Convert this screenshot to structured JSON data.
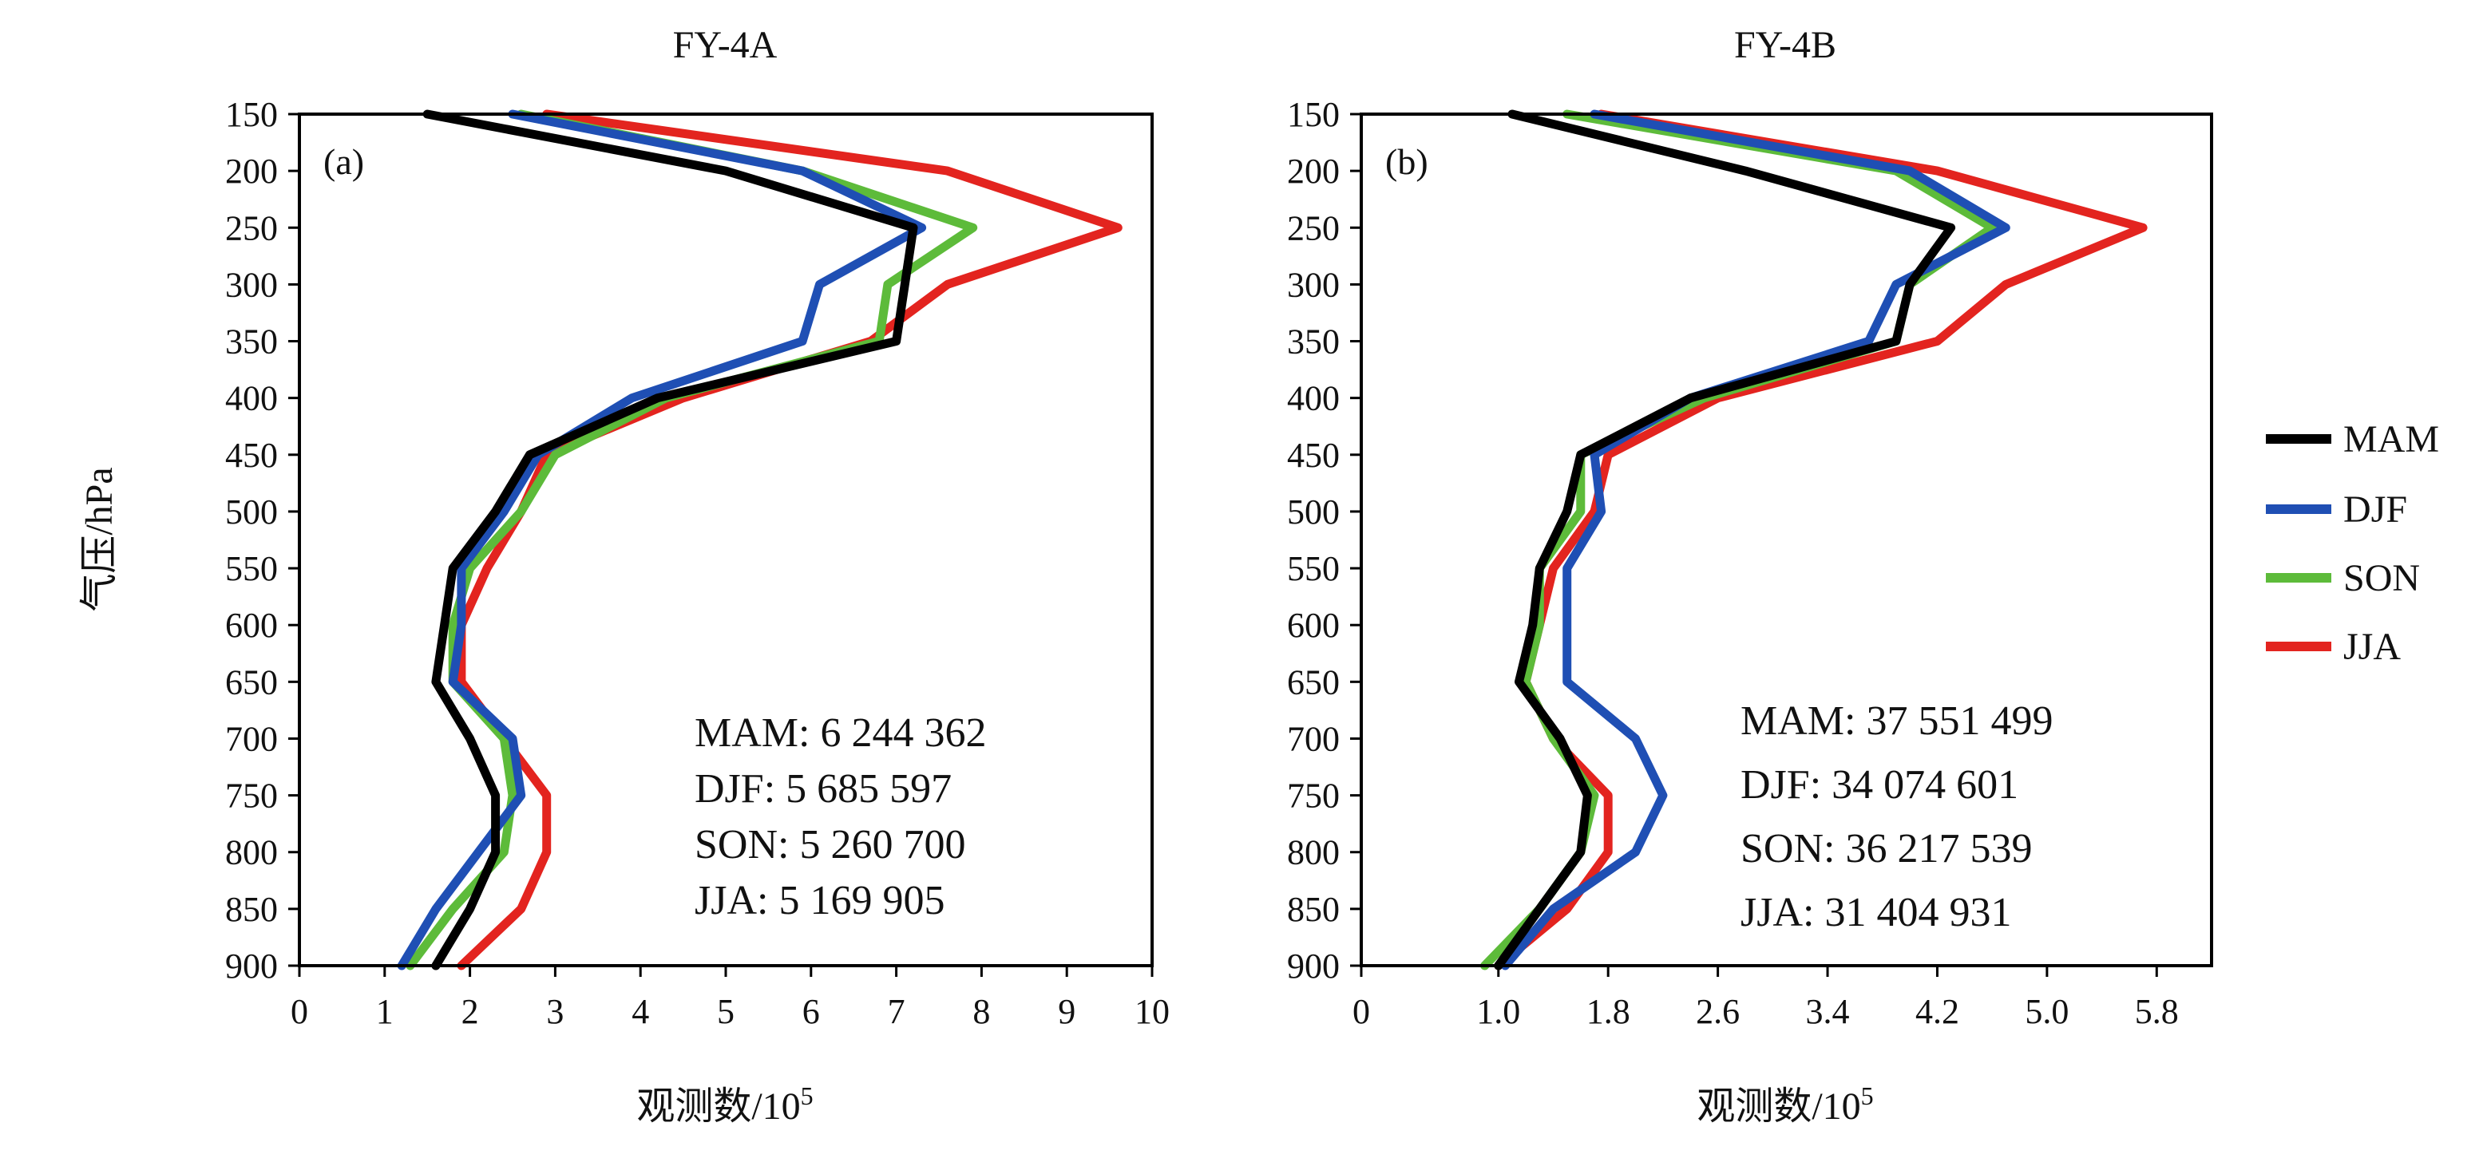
{
  "colors": {
    "MAM": "#000000",
    "DJF": "#1f4fb4",
    "SON": "#5dbb3a",
    "JJA": "#e3241f"
  },
  "legend": [
    {
      "name": "MAM",
      "color": "#000000"
    },
    {
      "name": "DJF",
      "color": "#1f4fb4"
    },
    {
      "name": "SON",
      "color": "#5dbb3a"
    },
    {
      "name": "JJA",
      "color": "#e3241f"
    }
  ],
  "chart_data": [
    {
      "type": "line",
      "title": "FY-4A",
      "panel_tag": "(a)",
      "xlabel": "观测数/10",
      "xlabel_sup": "5",
      "ylabel": "气压/hPa",
      "xlim": [
        0,
        10
      ],
      "xticks": [
        0,
        1,
        2,
        3,
        4,
        5,
        6,
        7,
        8,
        9,
        10
      ],
      "xtick_labels": [
        "0",
        "1",
        "2",
        "3",
        "4",
        "5",
        "6",
        "7",
        "8",
        "9",
        "10"
      ],
      "ylim": [
        150,
        900
      ],
      "y_inverted": true,
      "yticks": [
        150,
        200,
        250,
        300,
        350,
        400,
        450,
        500,
        550,
        600,
        650,
        700,
        750,
        800,
        850,
        900
      ],
      "ytick_labels": [
        "150",
        "200",
        "250",
        "300",
        "350",
        "400",
        "450",
        "500",
        "550",
        "600",
        "650",
        "700",
        "750",
        "800",
        "850",
        "900"
      ],
      "y": [
        150,
        200,
        250,
        300,
        350,
        400,
        450,
        500,
        550,
        600,
        650,
        700,
        750,
        800,
        850,
        900
      ],
      "series": [
        {
          "name": "JJA",
          "values": [
            2.9,
            7.6,
            9.6,
            7.6,
            6.7,
            4.5,
            2.9,
            2.6,
            2.2,
            1.9,
            1.9,
            2.4,
            2.9,
            2.9,
            2.6,
            1.9
          ]
        },
        {
          "name": "SON",
          "values": [
            2.6,
            5.9,
            7.9,
            6.9,
            6.8,
            4.3,
            3.0,
            2.6,
            2.0,
            1.8,
            1.8,
            2.4,
            2.5,
            2.4,
            1.8,
            1.3
          ]
        },
        {
          "name": "DJF",
          "values": [
            2.5,
            5.9,
            7.3,
            6.1,
            5.9,
            3.9,
            2.8,
            2.4,
            1.9,
            1.9,
            1.8,
            2.5,
            2.6,
            2.1,
            1.6,
            1.2
          ]
        },
        {
          "name": "MAM",
          "values": [
            1.5,
            5.0,
            7.2,
            7.1,
            7.0,
            4.2,
            2.7,
            2.3,
            1.8,
            1.7,
            1.6,
            2.0,
            2.3,
            2.3,
            2.0,
            1.6
          ]
        }
      ],
      "totals": [
        {
          "text": "MAM: 6 244 362"
        },
        {
          "text": "DJF: 5 685 597"
        },
        {
          "text": "SON: 5 260 700"
        },
        {
          "text": "JJA: 5 169 905"
        }
      ]
    },
    {
      "type": "line",
      "title": "FY-4B",
      "panel_tag": "(b)",
      "xlabel": "观测数/10",
      "xlabel_sup": "5",
      "ylabel": "",
      "xlim": [
        0,
        6.2
      ],
      "xticks": [
        0,
        1.0,
        1.8,
        2.6,
        3.4,
        4.2,
        5.0,
        5.8
      ],
      "xtick_labels": [
        "0",
        "1.0",
        "1.8",
        "2.6",
        "3.4",
        "4.2",
        "5.0",
        "5.8"
      ],
      "ylim": [
        150,
        900
      ],
      "y_inverted": true,
      "yticks": [
        150,
        200,
        250,
        300,
        350,
        400,
        450,
        500,
        550,
        600,
        650,
        700,
        750,
        800,
        850,
        900
      ],
      "ytick_labels": [
        "150",
        "200",
        "250",
        "300",
        "350",
        "400",
        "450",
        "500",
        "550",
        "600",
        "650",
        "700",
        "750",
        "800",
        "850",
        "900"
      ],
      "y": [
        150,
        200,
        250,
        300,
        350,
        400,
        450,
        500,
        550,
        600,
        650,
        700,
        750,
        800,
        850,
        900
      ],
      "series": [
        {
          "name": "JJA",
          "values": [
            1.75,
            4.2,
            5.7,
            4.7,
            4.2,
            2.6,
            1.8,
            1.7,
            1.4,
            1.3,
            1.2,
            1.4,
            1.8,
            1.8,
            1.5,
            1.0
          ]
        },
        {
          "name": "SON",
          "values": [
            1.5,
            3.9,
            4.6,
            4.0,
            3.9,
            2.5,
            1.6,
            1.6,
            1.3,
            1.3,
            1.2,
            1.4,
            1.7,
            1.6,
            1.3,
            0.9
          ]
        },
        {
          "name": "DJF",
          "values": [
            1.7,
            4.0,
            4.7,
            3.9,
            3.7,
            2.4,
            1.7,
            1.75,
            1.5,
            1.5,
            1.5,
            2.0,
            2.2,
            2.0,
            1.4,
            1.05
          ]
        },
        {
          "name": "MAM",
          "values": [
            1.1,
            2.8,
            4.3,
            4.0,
            3.9,
            2.4,
            1.6,
            1.5,
            1.3,
            1.25,
            1.15,
            1.45,
            1.65,
            1.6,
            1.3,
            1.0
          ]
        }
      ],
      "totals": [
        {
          "text": "MAM: 37 551 499"
        },
        {
          "text": "DJF: 34 074 601"
        },
        {
          "text": "SON: 36 217 539"
        },
        {
          "text": "JJA: 31 404 931"
        }
      ]
    }
  ]
}
